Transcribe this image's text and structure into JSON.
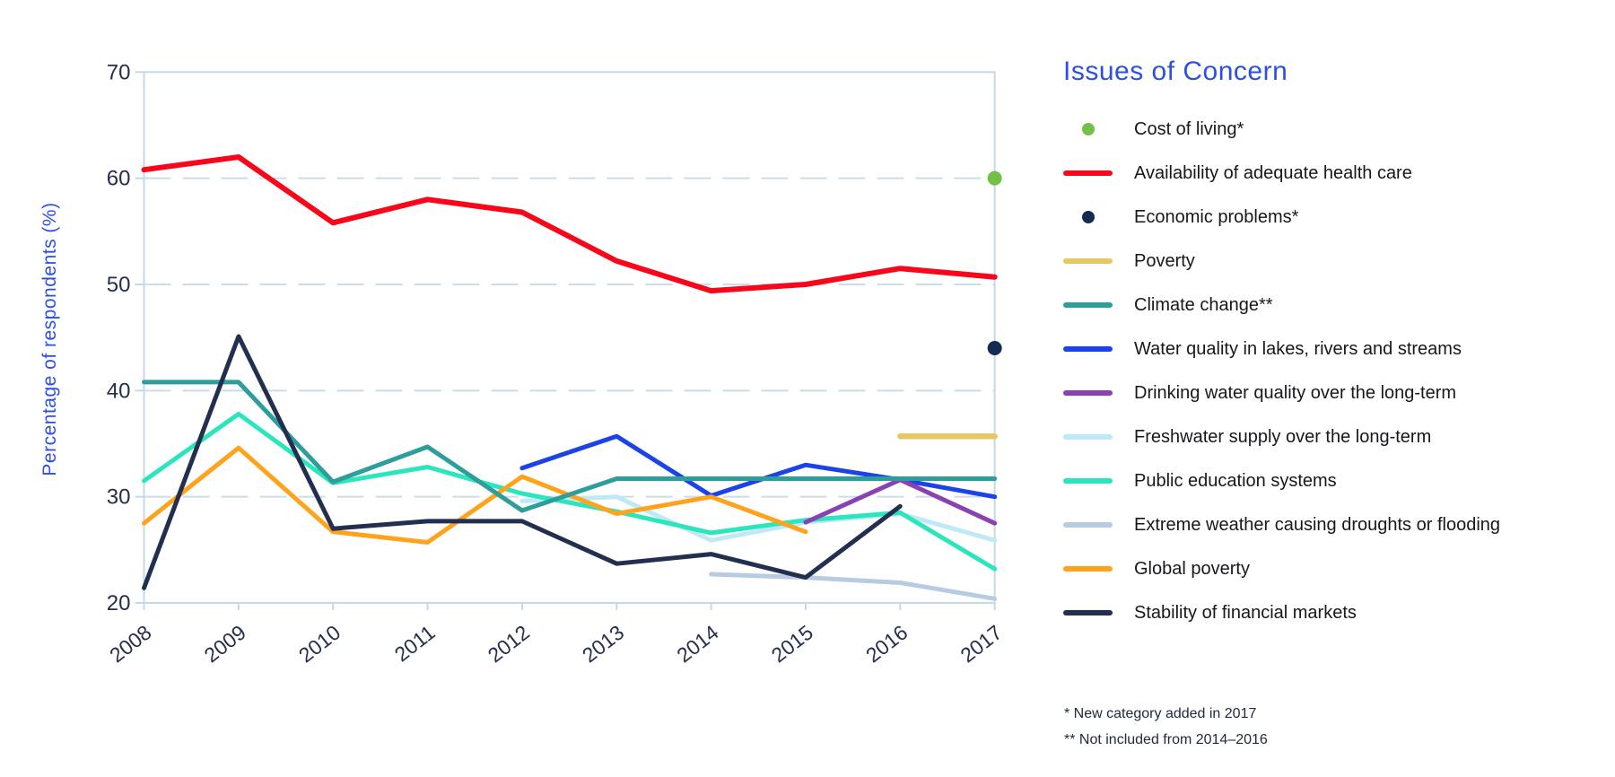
{
  "page": {
    "background_color": "#FFFFFF"
  },
  "legend": {
    "title": "Issues of Concern",
    "title_color": "#2B50E5"
  },
  "footnotes": {
    "line1": "* New category added in 2017",
    "line2": "** Not included from 2014–2016"
  },
  "chart_data": {
    "type": "line",
    "title": "Issues of Concern",
    "xlabel": "",
    "ylabel": "Percentage of respondents (%)",
    "ylabel_color": "#2B50E5",
    "axis_text_color": "#252F4B",
    "grid_color": "#CBDDEB",
    "border_color": "#C5D8E8",
    "grid": "horizontal dashed lines at 30, 40, 50, 60; solid box border",
    "legend_position": "right",
    "ylim": [
      20,
      70
    ],
    "y_ticks": [
      70,
      60,
      50,
      40,
      30,
      20
    ],
    "categories": [
      "2008",
      "2009",
      "2010",
      "2011",
      "2012",
      "2013",
      "2014",
      "2015",
      "2016",
      "2017"
    ],
    "series": [
      {
        "name": "Cost of living*",
        "style": "point",
        "color": "#72C147",
        "values": [
          null,
          null,
          null,
          null,
          null,
          null,
          null,
          null,
          null,
          60
        ]
      },
      {
        "name": "Availability of adequate health care",
        "style": "line",
        "color": "#F8071A",
        "values": [
          60.8,
          62.0,
          55.8,
          58.0,
          56.8,
          52.2,
          49.4,
          50.0,
          51.5,
          50.7
        ]
      },
      {
        "name": "Economic problems*",
        "style": "point",
        "color": "#152C52",
        "values": [
          null,
          null,
          null,
          null,
          null,
          null,
          null,
          null,
          null,
          44
        ]
      },
      {
        "name": "Poverty",
        "style": "line",
        "color": "#E5C861",
        "values": [
          null,
          null,
          null,
          null,
          null,
          null,
          null,
          null,
          35.7,
          35.7
        ]
      },
      {
        "name": "Climate change**",
        "style": "line",
        "color": "#2E9E9B",
        "values": [
          40.8,
          40.8,
          31.4,
          34.7,
          28.7,
          31.7,
          31.7,
          31.7,
          31.7,
          31.7
        ]
      },
      {
        "name": "Water quality in lakes, rivers and streams",
        "style": "line",
        "color": "#1C43E8",
        "values": [
          null,
          null,
          null,
          null,
          32.7,
          35.7,
          30.1,
          33.0,
          31.6,
          30.0
        ]
      },
      {
        "name": "Drinking water quality over the long-term",
        "style": "line",
        "color": "#8A41B1",
        "values": [
          null,
          null,
          null,
          null,
          null,
          null,
          null,
          27.6,
          31.6,
          27.5
        ]
      },
      {
        "name": "Freshwater supply over the long-term",
        "style": "line",
        "color": "#BFE9F6",
        "values": [
          null,
          null,
          null,
          null,
          29.6,
          30.0,
          25.9,
          27.6,
          28.4,
          25.9
        ]
      },
      {
        "name": "Public education systems",
        "style": "line",
        "color": "#2BE6BC",
        "values": [
          31.5,
          37.8,
          31.3,
          32.8,
          30.3,
          28.6,
          26.6,
          27.8,
          28.5,
          23.2
        ]
      },
      {
        "name": "Extreme weather causing droughts or flooding",
        "style": "line",
        "color": "#B7CBE2",
        "values": [
          null,
          null,
          null,
          null,
          null,
          null,
          22.7,
          22.4,
          21.9,
          20.4
        ]
      },
      {
        "name": "Global poverty",
        "style": "line",
        "color": "#FFA21C",
        "values": [
          27.5,
          34.6,
          26.7,
          25.7,
          31.9,
          28.4,
          30.0,
          26.7,
          null,
          null
        ]
      },
      {
        "name": "Stability of financial markets",
        "style": "line",
        "color": "#232F4F",
        "values": [
          21.4,
          45.1,
          27.0,
          27.7,
          27.7,
          23.7,
          24.6,
          22.4,
          29.1,
          null
        ]
      }
    ]
  }
}
